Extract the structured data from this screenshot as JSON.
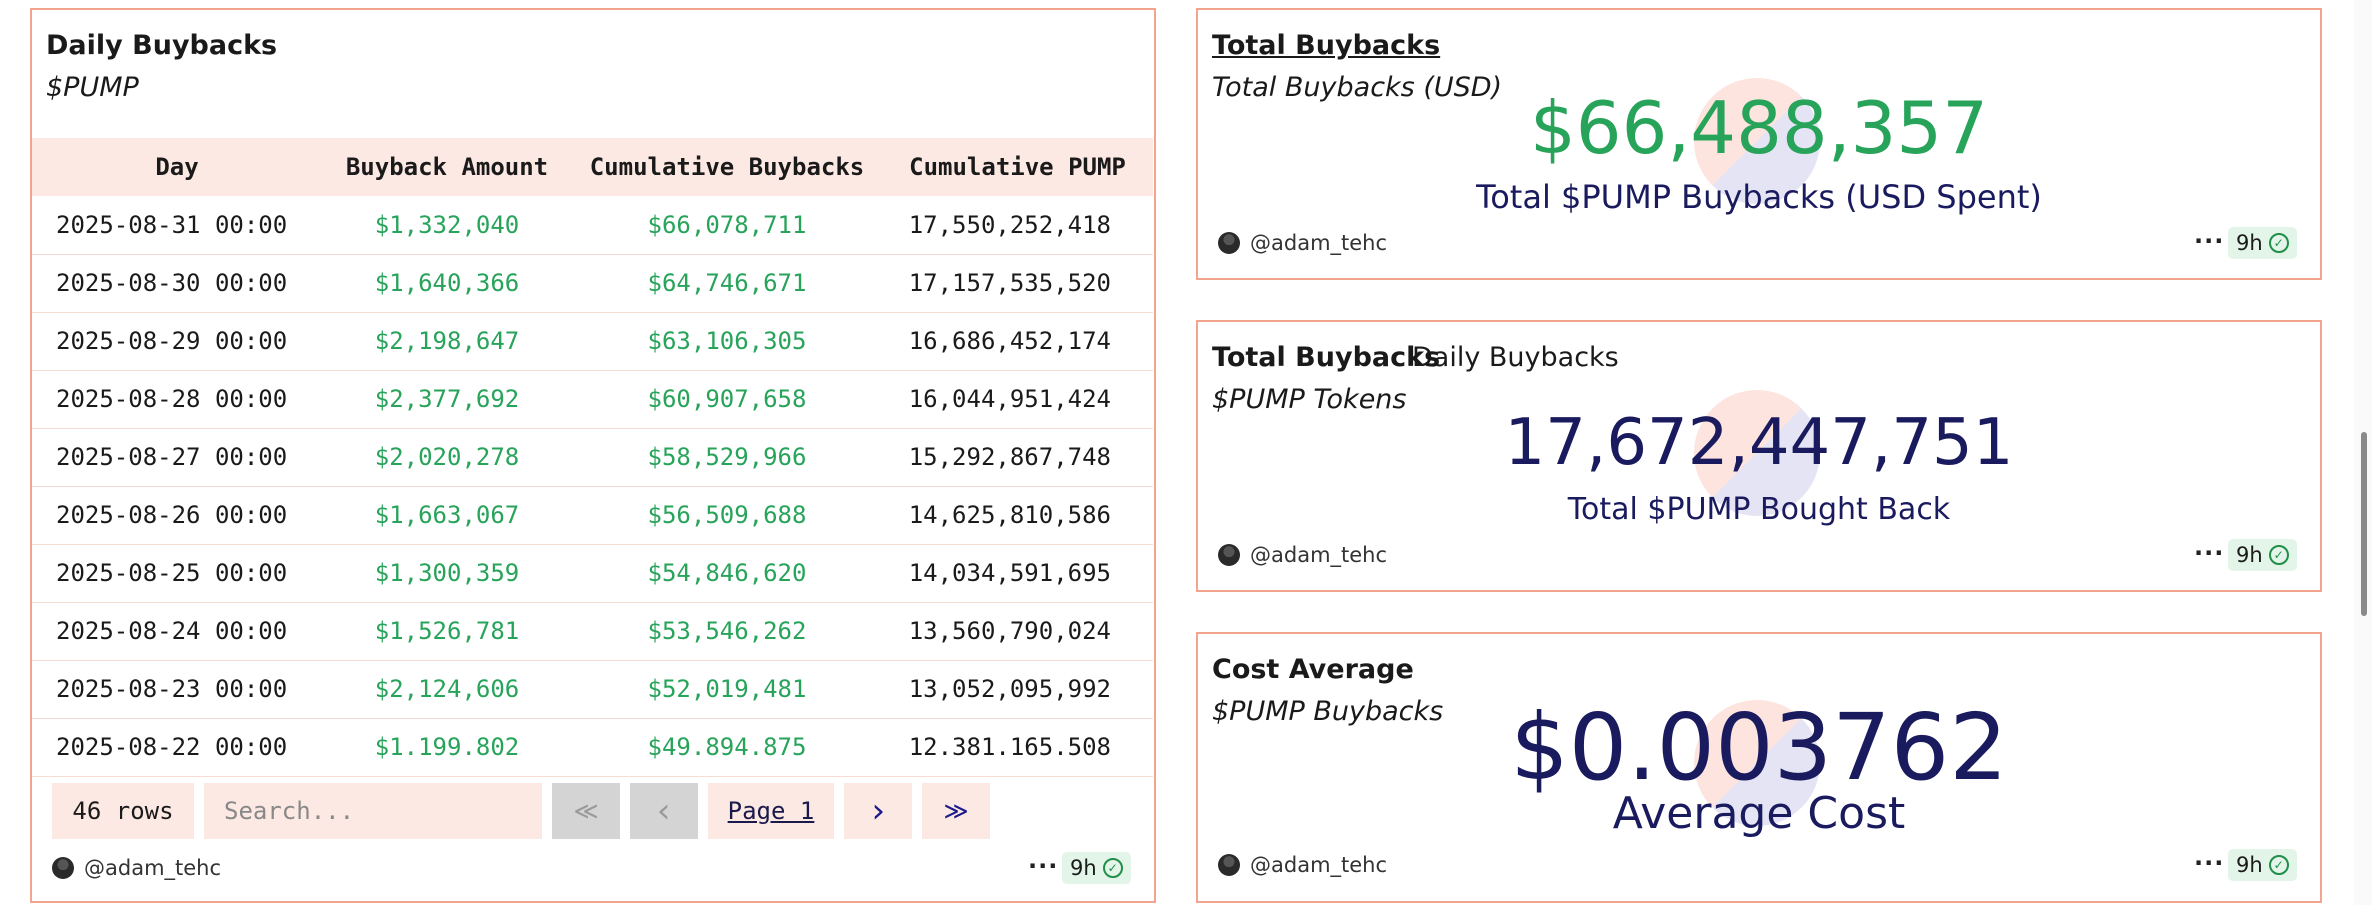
{
  "table_panel": {
    "title": "Daily Buybacks",
    "subtitle": "$PUMP",
    "columns": [
      "Day",
      "Buyback Amount",
      "Cumulative Buybacks",
      "Cumulative PUMP"
    ],
    "rows": [
      [
        "2025-08-31 00:00",
        "$1,332,040",
        "$66,078,711",
        "17,550,252,418"
      ],
      [
        "2025-08-30 00:00",
        "$1,640,366",
        "$64,746,671",
        "17,157,535,520"
      ],
      [
        "2025-08-29 00:00",
        "$2,198,647",
        "$63,106,305",
        "16,686,452,174"
      ],
      [
        "2025-08-28 00:00",
        "$2,377,692",
        "$60,907,658",
        "16,044,951,424"
      ],
      [
        "2025-08-27 00:00",
        "$2,020,278",
        "$58,529,966",
        "15,292,867,748"
      ],
      [
        "2025-08-26 00:00",
        "$1,663,067",
        "$56,509,688",
        "14,625,810,586"
      ],
      [
        "2025-08-25 00:00",
        "$1,300,359",
        "$54,846,620",
        "14,034,591,695"
      ],
      [
        "2025-08-24 00:00",
        "$1,526,781",
        "$53,546,262",
        "13,560,790,024"
      ],
      [
        "2025-08-23 00:00",
        "$2,124,606",
        "$52,019,481",
        "13,052,095,992"
      ],
      [
        "2025-08-22 00:00",
        "$1.199.802",
        "$49.894.875",
        "12.381.165.508"
      ]
    ],
    "pager": {
      "rows_count": "46 rows",
      "search_placeholder": "Search...",
      "first": "≪",
      "prev": "‹",
      "page": "Page 1",
      "next": "›",
      "last": "≫"
    },
    "author": "@adam_tehc",
    "more": "···",
    "age": "9h"
  },
  "counter_usd": {
    "title": "Total Buybacks",
    "subtitle": "Total Buybacks (USD)",
    "value": "$66,488,357",
    "label": "Total $PUMP Buybacks (USD Spent)",
    "value_color": "#27a35a",
    "author": "@adam_tehc",
    "more": "···",
    "age": "9h"
  },
  "counter_tokens": {
    "title": "Total Buybacks",
    "tab": "Daily Buybacks",
    "subtitle": "$PUMP Tokens",
    "value": "17,672,447,751",
    "label": "Total $PUMP Bought Back",
    "value_color": "#1a1a5e",
    "author": "@adam_tehc",
    "more": "···",
    "age": "9h"
  },
  "counter_cost": {
    "title": "Cost Average",
    "subtitle": "$PUMP Buybacks",
    "value": "$0.003762",
    "label": "Average Cost",
    "value_color": "#1a1a5e",
    "author": "@adam_tehc",
    "more": "···",
    "age": "9h"
  },
  "colors": {
    "panel_border": "#f2a48f",
    "header_bg": "#fde9e4",
    "green": "#27a35a",
    "navy": "#1a1a5e"
  }
}
